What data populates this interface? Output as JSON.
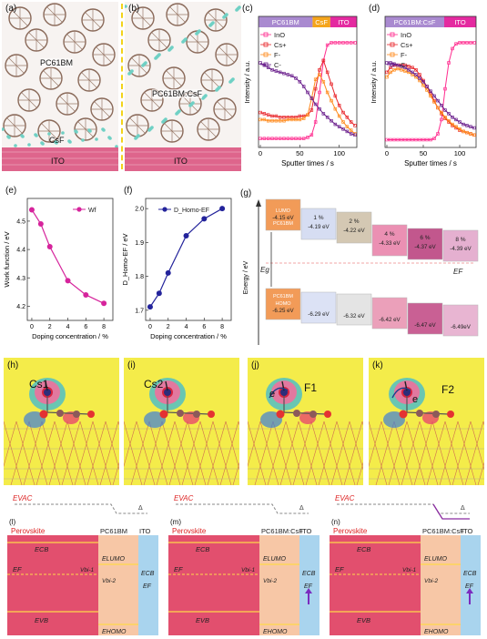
{
  "panels": {
    "a": {
      "label": "(a)",
      "pcbm": "PC61BM",
      "csf": "CsF",
      "ito": "ITO"
    },
    "b": {
      "label": "(b)",
      "pcbm": "PC61BM:CsF",
      "ito": "ITO"
    },
    "c": {
      "label": "(c)",
      "regions": [
        "PC61BM",
        "CsF",
        "ITO"
      ],
      "legend": [
        "InO",
        "Cs+",
        "F-",
        "C-"
      ],
      "ylabel": "Intensity / a.u.",
      "xlabel": "Sputter times / s",
      "xticks": [
        "0",
        "50",
        "100"
      ]
    },
    "d": {
      "label": "(d)",
      "regions": [
        "PC61BM:CsF",
        "ITO"
      ],
      "legend": [
        "InO",
        "Cs+",
        "F-",
        "C-"
      ],
      "ylabel": "Intensity / a.u.",
      "xlabel": "Sputter times / s",
      "xticks": [
        "0",
        "50",
        "100"
      ]
    },
    "g": {
      "label": "(g)",
      "ylabel": "Energy / eV",
      "eg": "Eg",
      "ef": "EF",
      "lumo_label": "LUMO",
      "homo_label": "HOMO",
      "pcbm": "PC61BM",
      "lumo": [
        "-4.15 eV",
        "-4.19 eV",
        "-4.22 eV",
        "-4.33 eV",
        "-4.37 eV",
        "-4.39 eV"
      ],
      "homo": [
        "-6.25 eV",
        "-6.29 eV",
        "-6.32 eV",
        "-6.42 eV",
        "-6.47 eV",
        "-6.49eV"
      ],
      "percent": [
        "",
        "1 %",
        "2 %",
        "4 %",
        "6 %",
        "8 %"
      ]
    },
    "h": {
      "label": "(h)",
      "atom": "Cs1"
    },
    "i": {
      "label": "(i)",
      "atom": "Cs2"
    },
    "j": {
      "label": "(j)",
      "atom": "F1",
      "e": "e"
    },
    "k": {
      "label": "(k)",
      "atom": "F2",
      "e": "e"
    },
    "l": {
      "label": "(l)",
      "layers": [
        "Perovskite",
        "PC61BM",
        "ITO"
      ],
      "evac": "EVAC"
    },
    "m": {
      "label": "(m)",
      "layers": [
        "Perovskite",
        "PC61BM:CsF",
        "ITO"
      ],
      "evac": "EVAC"
    },
    "n": {
      "label": "(n)",
      "layers": [
        "Perovskite",
        "PC61BM:CsF",
        "ITO"
      ],
      "evac": "EVAC"
    },
    "bands": {
      "ecb": "ECB",
      "evb": "EVB",
      "ef": "EF",
      "elumo": "ELUMO",
      "ehomo": "EHOMO",
      "vbi1": "Vbi-1",
      "vbi2": "Vbi-2",
      "delta": "Δ"
    }
  },
  "chart_data": [
    {
      "panel": "e",
      "type": "line",
      "title": "",
      "xlabel": "Doping concentration / %",
      "ylabel": "Work function / eV",
      "x": [
        0,
        1,
        2,
        4,
        6,
        8
      ],
      "series": [
        {
          "name": "Wf",
          "values": [
            4.54,
            4.49,
            4.41,
            4.29,
            4.24,
            4.21
          ]
        }
      ],
      "xlim": [
        -0.5,
        9
      ],
      "ylim": [
        4.15,
        4.58
      ],
      "yticks": [
        4.2,
        4.3,
        4.4,
        4.5
      ],
      "xticks": [
        0,
        2,
        4,
        6,
        8
      ],
      "color": "#d6249c",
      "legend": "top-right"
    },
    {
      "panel": "f",
      "type": "line",
      "title": "",
      "xlabel": "Doping concentration / %",
      "ylabel": "D_Homo-EF / eV",
      "x": [
        0,
        1,
        2,
        4,
        6,
        8
      ],
      "series": [
        {
          "name": "D_Homo-EF",
          "values": [
            1.71,
            1.75,
            1.81,
            1.92,
            1.97,
            2.0
          ]
        }
      ],
      "xlim": [
        -0.5,
        9
      ],
      "ylim": [
        1.67,
        2.03
      ],
      "yticks": [
        1.7,
        1.8,
        1.9,
        2.0
      ],
      "xticks": [
        0,
        2,
        4,
        6,
        8
      ],
      "color": "#23239b",
      "legend": "top-left"
    }
  ],
  "tof": {
    "c": {
      "InO": [
        6,
        6,
        6,
        6,
        6,
        6,
        6,
        6,
        6,
        6,
        6,
        6,
        7,
        9,
        20,
        45,
        72,
        85,
        87,
        87,
        87,
        87,
        87,
        87,
        87
      ],
      "Cs": [
        28,
        27,
        26,
        25,
        25,
        24,
        24,
        24,
        24,
        24,
        25,
        25,
        26,
        30,
        48,
        64,
        72,
        62,
        52,
        42,
        34,
        28,
        24,
        20,
        17
      ],
      "F": [
        22,
        22,
        21,
        21,
        21,
        21,
        21,
        22,
        22,
        22,
        22,
        23,
        26,
        40,
        56,
        60,
        54,
        45,
        38,
        31,
        25,
        20,
        16,
        13,
        10
      ],
      "C": [
        70,
        68,
        66,
        64,
        63,
        62,
        61,
        60,
        59,
        57,
        54,
        50,
        45,
        40,
        35,
        31,
        27,
        24,
        21,
        18,
        16,
        14,
        12,
        10,
        9
      ]
    },
    "d": {
      "InO": [
        5,
        5,
        5,
        5,
        5,
        5,
        5,
        5,
        5,
        5,
        5,
        5,
        5,
        6,
        10,
        22,
        48,
        70,
        82,
        86,
        87,
        87,
        87,
        87,
        87
      ],
      "Cs": [
        62,
        66,
        68,
        68,
        68,
        68,
        67,
        66,
        64,
        60,
        55,
        50,
        44,
        38,
        32,
        27,
        23,
        20,
        17,
        15,
        13,
        12,
        11,
        10,
        9
      ],
      "F": [
        58,
        62,
        64,
        65,
        64,
        63,
        62,
        60,
        58,
        55,
        51,
        47,
        42,
        37,
        32,
        28,
        24,
        21,
        18,
        16,
        14,
        12,
        11,
        10,
        9
      ],
      "C": [
        70,
        70,
        69,
        68,
        67,
        66,
        64,
        62,
        60,
        57,
        54,
        50,
        46,
        42,
        38,
        34,
        30,
        27,
        24,
        22,
        20,
        18,
        17,
        16,
        15
      ]
    }
  }
}
